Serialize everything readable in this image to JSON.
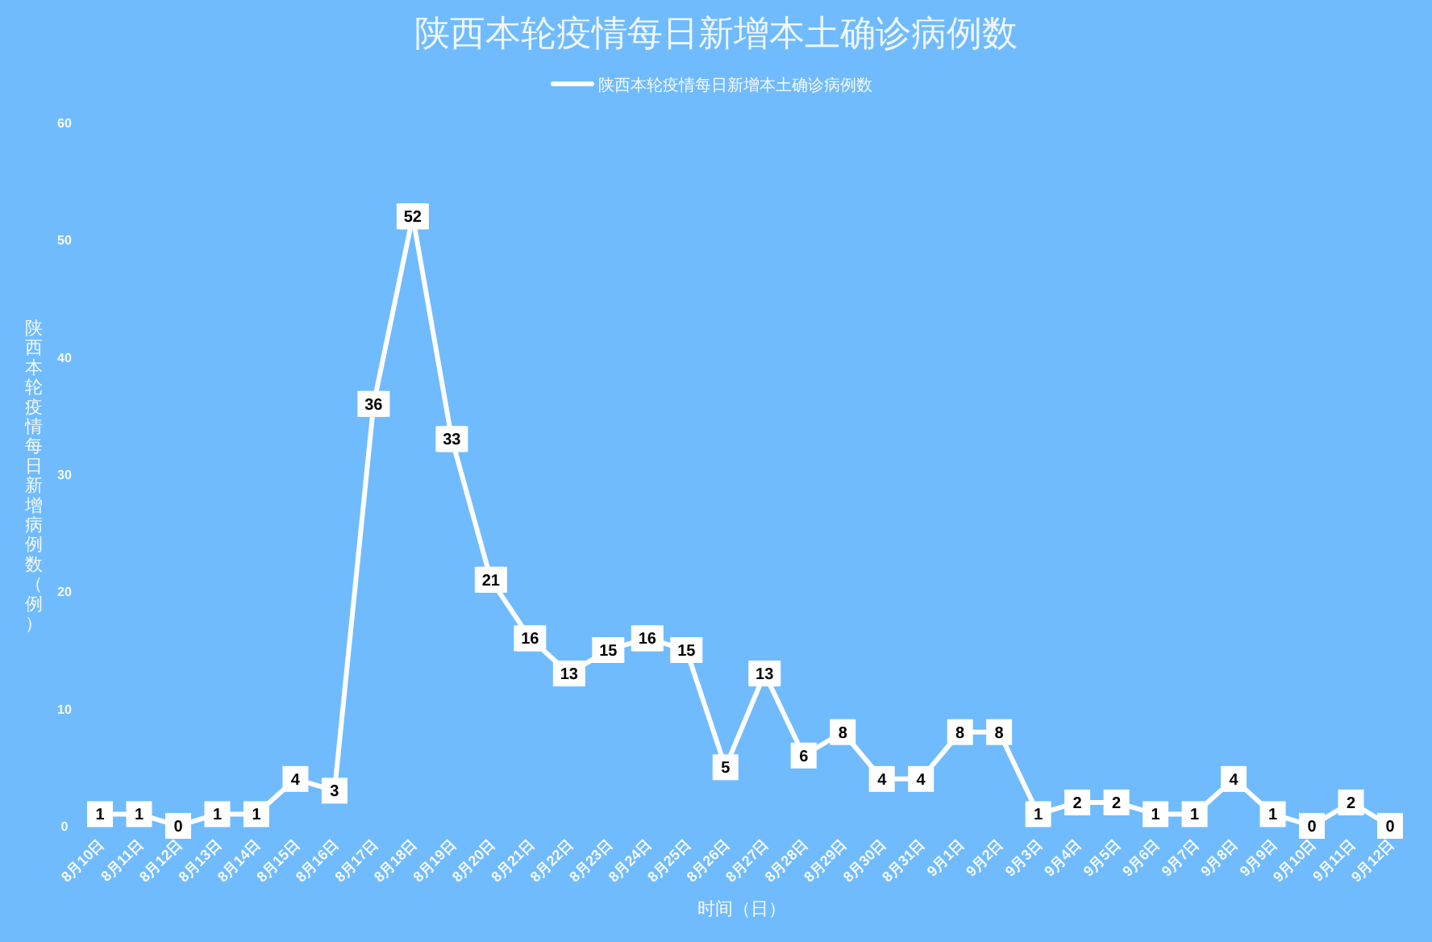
{
  "chart_data": {
    "type": "line",
    "title": "陕西本轮疫情每日新增本土确诊病例数",
    "xlabel": "时间（日）",
    "ylabel": "陕西本轮疫情每日新增病例数（例）",
    "categories": [
      "8月10日",
      "8月11日",
      "8月12日",
      "8月13日",
      "8月14日",
      "8月15日",
      "8月16日",
      "8月17日",
      "8月18日",
      "8月19日",
      "8月20日",
      "8月21日",
      "8月22日",
      "8月23日",
      "8月24日",
      "8月25日",
      "8月26日",
      "8月27日",
      "8月28日",
      "8月29日",
      "8月30日",
      "8月31日",
      "9月1日",
      "9月2日",
      "9月3日",
      "9月4日",
      "9月5日",
      "9月6日",
      "9月7日",
      "9月8日",
      "9月9日",
      "9月10日",
      "9月11日",
      "9月12日"
    ],
    "series": [
      {
        "name": "陕西本轮疫情每日新增本土确诊病例数",
        "color": "#ffffff",
        "values": [
          1,
          1,
          0,
          1,
          1,
          4,
          3,
          36,
          52,
          33,
          21,
          16,
          13,
          15,
          16,
          15,
          5,
          13,
          6,
          8,
          4,
          4,
          8,
          8,
          1,
          2,
          2,
          1,
          1,
          4,
          1,
          0,
          2,
          0
        ]
      }
    ],
    "ylim": [
      0,
      60
    ],
    "yticks": [
      0,
      10,
      20,
      30,
      40,
      50,
      60
    ],
    "legend": "top",
    "data_labels": true,
    "marker": "square"
  }
}
